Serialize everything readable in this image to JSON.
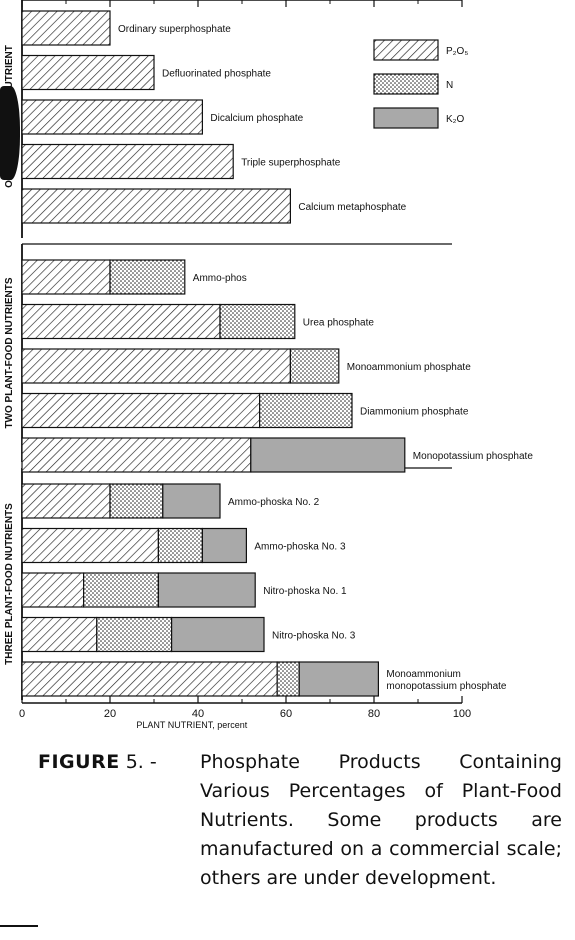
{
  "chart_data": {
    "type": "bar",
    "orientation": "horizontal",
    "stacked": true,
    "xlabel": "PLANT NUTRIENT, percent",
    "xlim": [
      0,
      100
    ],
    "xticks": [
      0,
      20,
      40,
      60,
      80,
      100
    ],
    "grid": false,
    "legend_position": "top-right",
    "series": [
      {
        "name": "P₂O₅",
        "key": "p2o5",
        "pattern": "diagonal-hatch"
      },
      {
        "name": "N",
        "key": "n",
        "pattern": "dotted"
      },
      {
        "name": "K₂O",
        "key": "k2o",
        "pattern": "solid-gray",
        "color": "#a9a9a9"
      }
    ],
    "groups": [
      {
        "label": "ONE PLANT-FOOD NUTRIENT",
        "products": [
          {
            "name": "Ordinary superphosphate",
            "p2o5": 20,
            "n": 0,
            "k2o": 0
          },
          {
            "name": "Defluorinated phosphate",
            "p2o5": 30,
            "n": 0,
            "k2o": 0
          },
          {
            "name": "Dicalcium phosphate",
            "p2o5": 41,
            "n": 0,
            "k2o": 0
          },
          {
            "name": "Triple superphosphate",
            "p2o5": 48,
            "n": 0,
            "k2o": 0
          },
          {
            "name": "Calcium metaphosphate",
            "p2o5": 61,
            "n": 0,
            "k2o": 0
          }
        ]
      },
      {
        "label": "TWO PLANT-FOOD NUTRIENTS",
        "products": [
          {
            "name": "Ammo-phos",
            "p2o5": 20,
            "n": 17,
            "k2o": 0
          },
          {
            "name": "Urea phosphate",
            "p2o5": 45,
            "n": 17,
            "k2o": 0
          },
          {
            "name": "Monoammonium phosphate",
            "p2o5": 61,
            "n": 11,
            "k2o": 0
          },
          {
            "name": "Diammonium phosphate",
            "p2o5": 54,
            "n": 21,
            "k2o": 0
          },
          {
            "name": "Monopotassium phosphate",
            "p2o5": 52,
            "n": 0,
            "k2o": 35
          }
        ]
      },
      {
        "label": "THREE PLANT-FOOD NUTRIENTS",
        "products": [
          {
            "name": "Ammo-phoska No. 2",
            "p2o5": 20,
            "n": 12,
            "k2o": 13
          },
          {
            "name": "Ammo-phoska No. 3",
            "p2o5": 31,
            "n": 10,
            "k2o": 10
          },
          {
            "name": "Nitro-phoska No. 1",
            "p2o5": 14,
            "n": 17,
            "k2o": 22
          },
          {
            "name": "Nitro-phoska No. 3",
            "p2o5": 17,
            "n": 17,
            "k2o": 21
          },
          {
            "name": "Monoammonium monopotassium phosphate",
            "label_lines": [
              "Monoammonium",
              "monopotassium phosphate"
            ],
            "p2o5": 58,
            "n": 5,
            "k2o": 18
          }
        ]
      }
    ]
  },
  "caption": {
    "figure_label": "FIGURE",
    "number": "5. -",
    "text": "Phosphate Products Containing Various Percentages of Plant-Food Nutrients. Some products are manufactured on a commercial scale; others are under development."
  }
}
